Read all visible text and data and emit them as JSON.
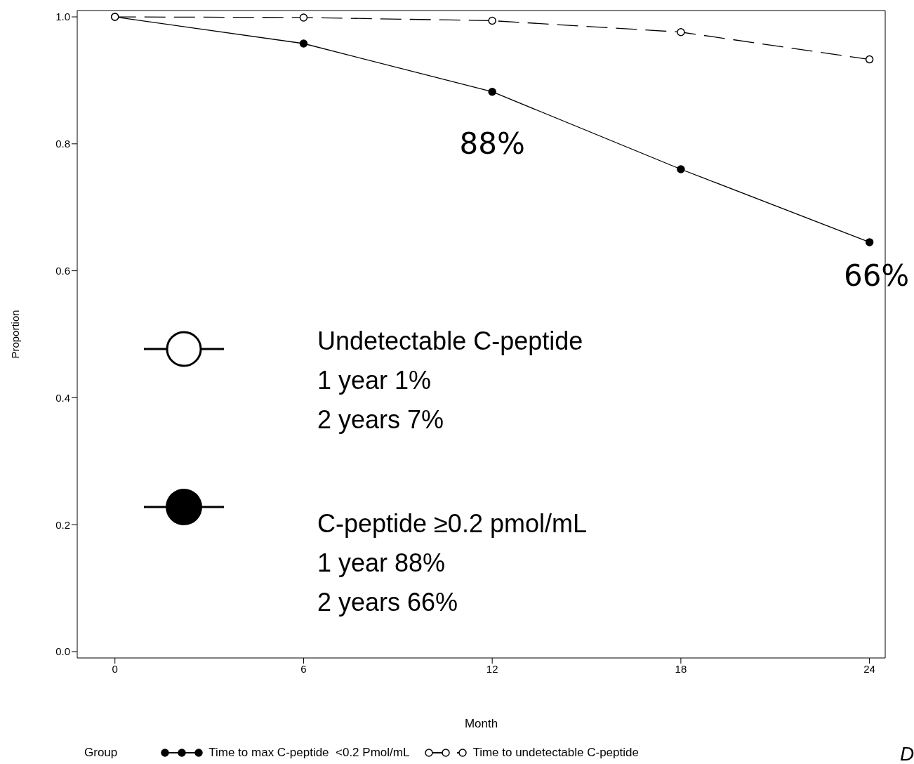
{
  "chart_data": {
    "type": "line",
    "xlabel": "Month",
    "ylabel": "Proportion",
    "legend_title": "Group",
    "x": [
      0,
      6,
      12,
      18,
      24
    ],
    "series": [
      {
        "name": "Time to max C-peptide  <0.2 Pmol/mL",
        "color": "#000000",
        "values": [
          1.0,
          0.958,
          0.882,
          0.76,
          0.645
        ],
        "line_style": "solid",
        "marker": "circle"
      },
      {
        "name": "Time to undetectable C-peptide",
        "color": "#000000",
        "values": [
          1.0,
          0.999,
          0.994,
          0.976,
          0.933
        ],
        "line_style": "dashed",
        "marker": "circle"
      }
    ],
    "xlim": [
      -1.2,
      24.5
    ],
    "xticks": [
      0,
      6,
      12,
      18,
      24
    ],
    "ylim": [
      -0.01,
      1.01
    ],
    "yticks": [
      {
        "value": 0,
        "label": "0.0"
      },
      0.2,
      0.4,
      0.6,
      0.8,
      {
        "value": 1,
        "label": "1.0"
      }
    ],
    "grid": false,
    "legend": "bottom",
    "annotations": [
      {
        "text": "88%",
        "x": 12,
        "y": 0.882
      },
      {
        "text": "66%",
        "x": 24,
        "y": 0.645
      },
      "Undetectable C-peptide",
      "1 year 1%",
      "2 years 7%",
      "C-peptide ≥0.2 pmol/mL",
      "1 year 88%",
      "2 years 66%",
      "D"
    ]
  }
}
